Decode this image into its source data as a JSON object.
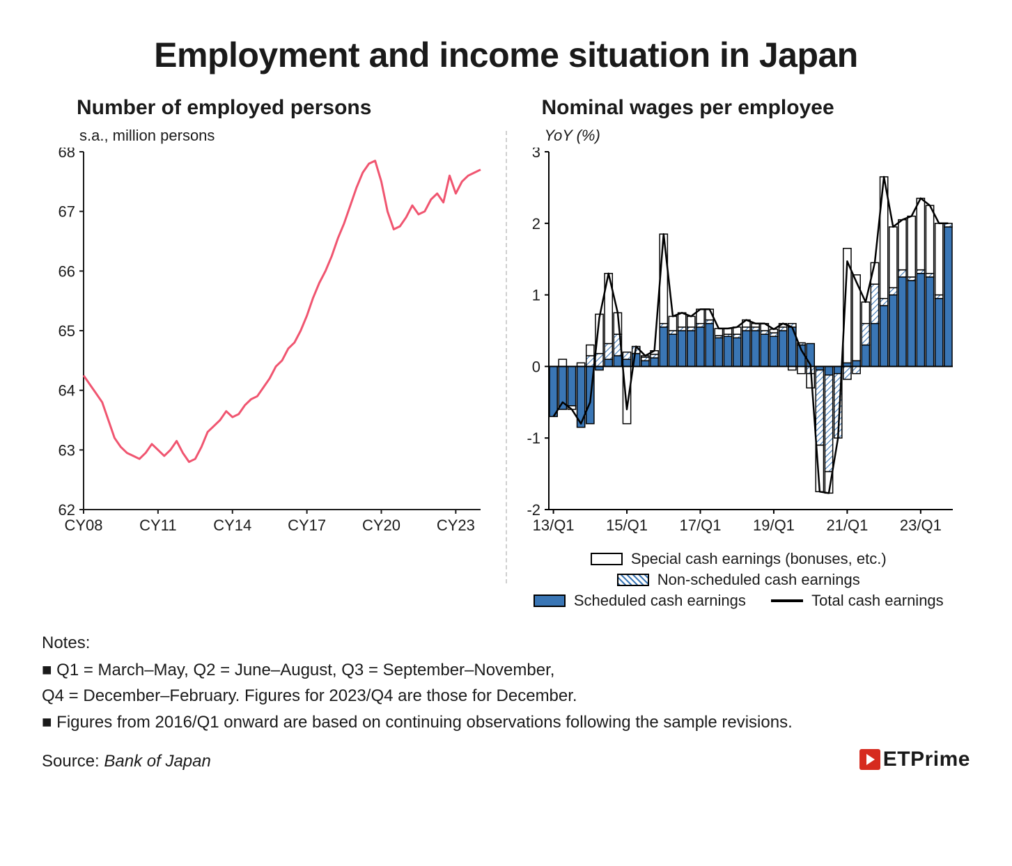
{
  "title": "Employment and income situation in Japan",
  "left_chart": {
    "type": "line",
    "subtitle": "Number of employed persons",
    "ylabel": "s.a., million persons",
    "x_start_year": 8,
    "x_end_year": 24,
    "x_tick_years": [
      8,
      11,
      14,
      17,
      20,
      23
    ],
    "x_tick_labels": [
      "CY08",
      "CY11",
      "CY14",
      "CY17",
      "CY20",
      "CY23"
    ],
    "ylim": [
      62,
      68
    ],
    "y_ticks": [
      62,
      63,
      64,
      65,
      66,
      67,
      68
    ],
    "line_color": "#f05570",
    "line_width": 3,
    "axis_color": "#1a1a1a",
    "background_color": "#ffffff",
    "series": [
      64.25,
      64.1,
      63.95,
      63.8,
      63.5,
      63.2,
      63.05,
      62.95,
      62.9,
      62.85,
      62.95,
      63.1,
      63.0,
      62.9,
      63.0,
      63.15,
      62.95,
      62.8,
      62.85,
      63.05,
      63.3,
      63.4,
      63.5,
      63.65,
      63.55,
      63.6,
      63.75,
      63.85,
      63.9,
      64.05,
      64.2,
      64.4,
      64.5,
      64.7,
      64.8,
      65.0,
      65.25,
      65.55,
      65.8,
      66.0,
      66.25,
      66.55,
      66.8,
      67.1,
      67.4,
      67.65,
      67.8,
      67.85,
      67.5,
      67.0,
      66.7,
      66.75,
      66.9,
      67.1,
      66.95,
      67.0,
      67.2,
      67.3,
      67.15,
      67.6,
      67.3,
      67.5,
      67.6,
      67.65,
      67.7
    ]
  },
  "right_chart": {
    "type": "stacked-bar-with-line",
    "subtitle": "Nominal wages per employee",
    "ylabel": "YoY (%)",
    "ylim": [
      -2,
      3
    ],
    "y_ticks": [
      -2,
      -1,
      0,
      1,
      2,
      3
    ],
    "x_tick_positions": [
      0,
      8,
      16,
      24,
      32,
      40
    ],
    "x_tick_labels": [
      "13/Q1",
      "15/Q1",
      "17/Q1",
      "19/Q1",
      "21/Q1",
      "23/Q1"
    ],
    "n_periods": 44,
    "colors": {
      "scheduled": "#3a76b5",
      "nonscheduled_fill": "#ffffff",
      "nonscheduled_hatch": "#3a76b5",
      "special": "#ffffff",
      "bar_border": "#000000",
      "line": "#000000"
    },
    "line_width": 2.5,
    "bar_width_ratio": 0.85,
    "series_scheduled": [
      -0.7,
      -0.6,
      -0.55,
      -0.85,
      -0.8,
      -0.05,
      0.1,
      0.15,
      0.1,
      0.18,
      0.08,
      0.12,
      0.55,
      0.45,
      0.5,
      0.5,
      0.55,
      0.6,
      0.4,
      0.42,
      0.4,
      0.5,
      0.5,
      0.45,
      0.42,
      0.5,
      0.55,
      0.3,
      0.32,
      -0.05,
      -0.12,
      -0.1,
      0.05,
      0.08,
      0.3,
      0.6,
      0.85,
      1.0,
      1.25,
      1.2,
      1.3,
      1.25,
      0.95,
      1.95
    ],
    "series_nonscheduled": [
      0.0,
      0.0,
      0.0,
      0.0,
      0.15,
      0.18,
      0.22,
      0.3,
      0.1,
      0.1,
      0.05,
      0.05,
      0.05,
      0.05,
      0.05,
      0.05,
      0.05,
      0.05,
      0.03,
      0.03,
      0.05,
      0.05,
      0.05,
      0.05,
      0.05,
      0.05,
      0.05,
      0.03,
      -0.1,
      -1.05,
      -1.35,
      -0.9,
      -0.18,
      -0.1,
      0.3,
      0.55,
      0.1,
      0.1,
      0.1,
      0.05,
      0.05,
      0.05,
      0.05,
      0.05
    ],
    "series_special": [
      0.0,
      0.1,
      -0.05,
      0.05,
      0.15,
      0.55,
      0.98,
      0.3,
      -0.8,
      0.0,
      0.02,
      0.05,
      1.25,
      0.2,
      0.2,
      0.15,
      0.2,
      0.15,
      0.1,
      0.08,
      0.1,
      0.1,
      0.05,
      0.1,
      0.05,
      0.05,
      -0.05,
      -0.1,
      -0.2,
      -0.65,
      -0.3,
      0.0,
      1.6,
      1.2,
      0.3,
      0.3,
      1.7,
      0.85,
      0.7,
      0.85,
      1.0,
      0.95,
      1.0,
      0.0
    ]
  },
  "legend": {
    "items": [
      {
        "key": "special",
        "label": "Special cash earnings (bonuses, etc.)"
      },
      {
        "key": "nonscheduled",
        "label": "Non-scheduled cash earnings"
      },
      {
        "key": "scheduled",
        "label": "Scheduled cash earnings"
      },
      {
        "key": "total_line",
        "label": "Total cash earnings"
      }
    ]
  },
  "notes": {
    "heading": "Notes:",
    "lines": [
      "■ Q1 = March–May, Q2 = June–August, Q3 = September–November,",
      "Q4 = December–February. Figures for 2023/Q4 are those for December.",
      "■ Figures from 2016/Q1 onward are based on continuing observations following the sample revisions."
    ]
  },
  "source": {
    "label": "Source:",
    "value": "Bank of Japan"
  },
  "brand": {
    "name": "ETPrime"
  }
}
